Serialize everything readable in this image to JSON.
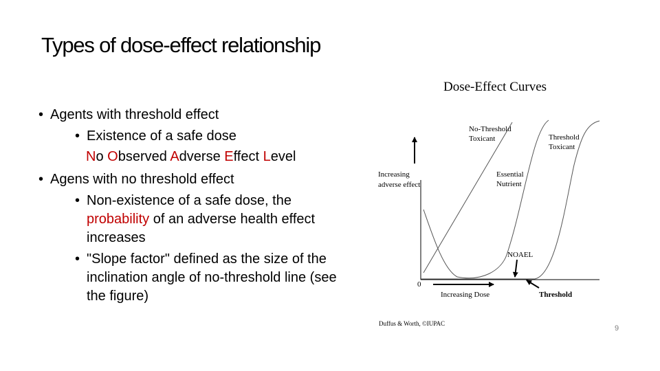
{
  "slide": {
    "title": "Types of dose-effect relationship",
    "page_number": "9"
  },
  "bullets": {
    "b1": "Agents with threshold effect",
    "b1_sub": "Existence of a safe dose",
    "noael": {
      "n_red": "N",
      "n_rest": "o ",
      "o_red": "O",
      "o_rest": "bserved ",
      "a_red": "A",
      "a_rest": "dverse ",
      "e_red": "E",
      "e_rest": "ffect ",
      "l_red": "L",
      "l_rest": "evel"
    },
    "b2": "Agens with no threshold effect",
    "b2_sub1_a": "Non-existence of a safe dose, the ",
    "b2_sub1_red": "probability",
    "b2_sub1_b": " of an adverse health effect increases",
    "b2_sub2": "\"Slope factor\" defined as the size of the inclination angle of no-threshold line (see the figure)"
  },
  "figure": {
    "title": "Dose-Effect Curves",
    "y_label_1": "Increasing",
    "y_label_2": "adverse effect",
    "origin": "0",
    "x_label": "Increasing Dose",
    "no_threshold_1": "No-Threshold",
    "no_threshold_2": "Toxicant",
    "threshold_1": "Threshold",
    "threshold_2": "Toxicant",
    "essential_1": "Essential",
    "essential_2": "Nutrient",
    "noael_label": "NOAEL",
    "threshold_label": "Threshold",
    "credit": "Duffus & Worth, ©IUPAC"
  }
}
